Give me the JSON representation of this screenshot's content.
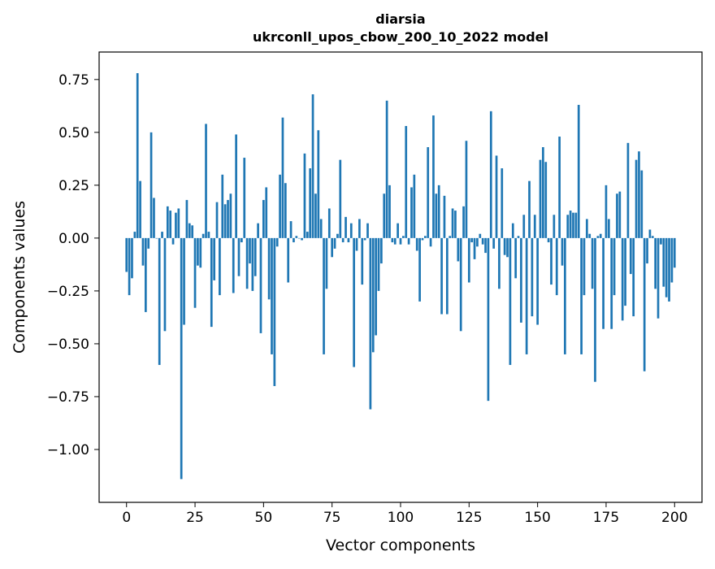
{
  "chart_data": {
    "type": "bar",
    "title": "diarsia",
    "subtitle": "ukrconll_upos_cbow_200_10_2022 model",
    "xlabel": "Vector components",
    "ylabel": "Components values",
    "xlim": [
      -10,
      210
    ],
    "ylim": [
      -1.25,
      0.88
    ],
    "xticks": [
      0,
      25,
      50,
      75,
      100,
      125,
      150,
      175,
      200
    ],
    "yticks": [
      0.75,
      0.5,
      0.25,
      0.0,
      -0.25,
      -0.5,
      -0.75,
      -1.0
    ],
    "ytick_labels": [
      "0.75",
      "0.50",
      "0.25",
      "0.00",
      "−0.25",
      "−0.50",
      "−0.75",
      "−1.00"
    ],
    "bar_color": "#1f77b4",
    "grid": false,
    "values": [
      -0.16,
      -0.27,
      -0.19,
      0.03,
      0.78,
      0.27,
      -0.13,
      -0.35,
      -0.05,
      0.5,
      0.19,
      0.0,
      -0.6,
      0.03,
      -0.44,
      0.15,
      0.13,
      -0.03,
      0.12,
      0.14,
      -1.14,
      -0.41,
      0.18,
      0.07,
      0.06,
      -0.33,
      -0.13,
      -0.14,
      0.02,
      0.54,
      0.03,
      -0.42,
      -0.2,
      0.17,
      -0.27,
      0.3,
      0.16,
      0.18,
      0.21,
      -0.26,
      0.49,
      -0.18,
      -0.02,
      0.38,
      -0.24,
      -0.12,
      -0.25,
      -0.18,
      0.07,
      -0.45,
      0.18,
      0.24,
      -0.29,
      -0.55,
      -0.7,
      -0.04,
      0.3,
      0.57,
      0.26,
      -0.21,
      0.08,
      -0.02,
      0.01,
      0.0,
      -0.01,
      0.4,
      0.03,
      0.33,
      0.68,
      0.21,
      0.51,
      0.09,
      -0.55,
      -0.24,
      0.14,
      -0.09,
      -0.05,
      0.02,
      0.37,
      -0.02,
      0.1,
      -0.02,
      0.07,
      -0.61,
      -0.06,
      0.09,
      -0.22,
      -0.01,
      0.07,
      -0.81,
      -0.54,
      -0.46,
      -0.25,
      -0.12,
      0.21,
      0.65,
      0.25,
      -0.02,
      -0.03,
      0.07,
      -0.03,
      0.01,
      0.53,
      -0.03,
      0.24,
      0.3,
      -0.06,
      -0.3,
      -0.01,
      0.01,
      0.43,
      -0.04,
      0.58,
      0.21,
      0.25,
      -0.36,
      0.2,
      -0.36,
      0.01,
      0.14,
      0.13,
      -0.11,
      -0.44,
      0.15,
      0.46,
      -0.21,
      -0.02,
      -0.1,
      -0.04,
      0.02,
      -0.03,
      -0.07,
      -0.77,
      0.6,
      -0.05,
      0.39,
      -0.24,
      0.33,
      -0.08,
      -0.09,
      -0.6,
      0.07,
      -0.19,
      0.01,
      -0.4,
      0.11,
      -0.55,
      0.27,
      -0.37,
      0.11,
      -0.41,
      0.37,
      0.43,
      0.36,
      -0.02,
      -0.22,
      0.11,
      -0.27,
      0.48,
      -0.13,
      -0.55,
      0.11,
      0.13,
      0.12,
      0.12,
      0.63,
      -0.55,
      -0.27,
      0.09,
      0.02,
      -0.24,
      -0.68,
      0.01,
      0.02,
      -0.43,
      0.25,
      0.09,
      -0.43,
      -0.27,
      0.21,
      0.22,
      -0.39,
      -0.32,
      0.45,
      -0.17,
      -0.37,
      0.37,
      0.41,
      0.32,
      -0.63,
      -0.12,
      0.04,
      0.01,
      -0.24,
      -0.38,
      -0.03,
      -0.23,
      -0.28,
      -0.3,
      -0.21,
      -0.14
    ]
  }
}
